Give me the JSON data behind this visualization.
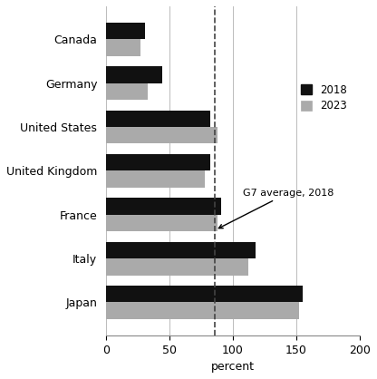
{
  "countries": [
    "Japan",
    "Italy",
    "France",
    "United Kingdom",
    "United States",
    "Germany",
    "Canada"
  ],
  "values_2018": [
    155,
    118,
    91,
    82,
    82,
    44,
    31
  ],
  "values_2023": [
    152,
    112,
    88,
    78,
    88,
    33,
    27
  ],
  "g7_avg_2018": 86,
  "bar_color_2018": "#111111",
  "bar_color_2023": "#aaaaaa",
  "xlim": [
    0,
    200
  ],
  "xticks": [
    0,
    50,
    100,
    150,
    200
  ],
  "xlabel": "percent",
  "legend_2018": "2018",
  "legend_2023": "2023",
  "annotation_text": "G7 average, 2018",
  "grid_color": "#bbbbbb",
  "bar_height": 0.38,
  "figsize": [
    4.16,
    4.18
  ],
  "dpi": 100
}
